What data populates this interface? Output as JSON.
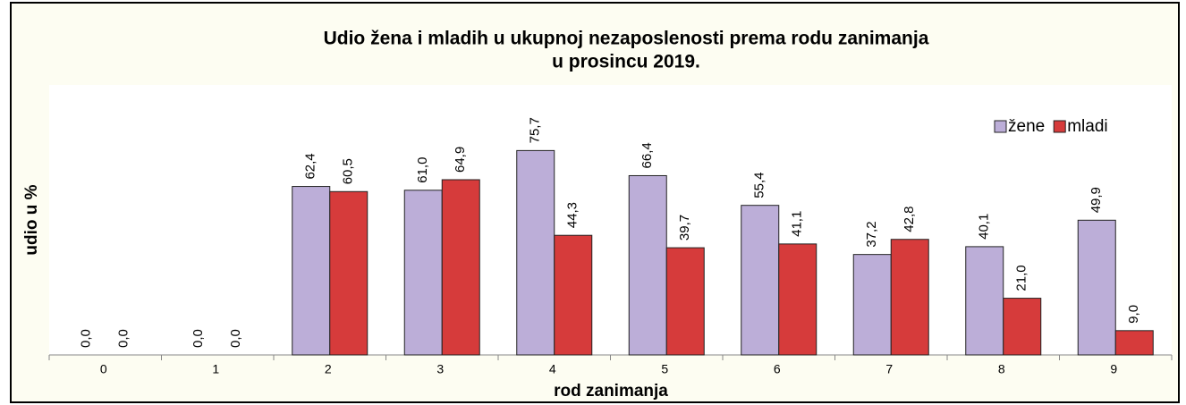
{
  "chart_data": {
    "type": "bar",
    "title": [
      "Udio žena i mladih u ukupnoj nezaposlenosti prema rodu zanimanja",
      "u prosincu 2019."
    ],
    "x_label": "rod zanimanja",
    "y_label": "udio u %",
    "categories": [
      "0",
      "1",
      "2",
      "3",
      "4",
      "5",
      "6",
      "7",
      "8",
      "9"
    ],
    "series": [
      {
        "name": "žene",
        "color": "#bcaed8",
        "values": [
          0,
          0,
          62.4,
          61.0,
          75.7,
          66.4,
          55.4,
          37.2,
          40.1,
          49.9
        ],
        "value_labels": [
          "0,0",
          "0,0",
          "62,4",
          "61,0",
          "75,7",
          "66,4",
          "55,4",
          "37,2",
          "40,1",
          "49,9"
        ]
      },
      {
        "name": "mladi",
        "color": "#d63b3b",
        "values": [
          0,
          0,
          60.5,
          64.9,
          44.3,
          39.7,
          41.1,
          42.8,
          21.0,
          9.0
        ],
        "value_labels": [
          "0,0",
          "0,0",
          "60,5",
          "64,9",
          "44,3",
          "39,7",
          "41,1",
          "42,8",
          "21,0",
          "9,0"
        ]
      }
    ],
    "ylim": [
      0,
      100
    ],
    "legend": "top-right"
  }
}
